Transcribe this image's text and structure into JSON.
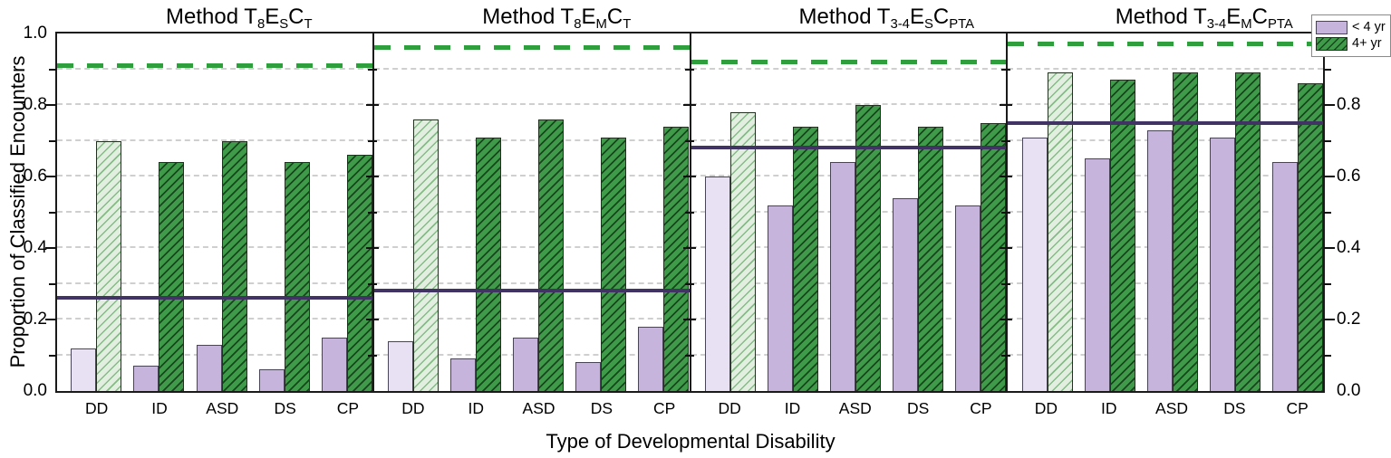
{
  "figure": {
    "ylabel": "Proportion of Classified Encounters",
    "xlabel": "Type of Developmental Disability",
    "left_axis_tick_labels": [
      "1.0",
      "0.8",
      "0.6",
      "0.4",
      "0.2",
      "0.0"
    ],
    "right_axis_tick_labels": [
      "0.8",
      "0.6",
      "0.4",
      "0.2",
      "0.0"
    ],
    "legend": {
      "entries": [
        {
          "label": "< 4 yr",
          "key": "lt4"
        },
        {
          "label": "4+ yr",
          "key": "plus4"
        }
      ]
    }
  },
  "chart_data": {
    "type": "bar",
    "categories": [
      "DD",
      "ID",
      "ASD",
      "DS",
      "CP"
    ],
    "ylim": [
      0,
      1
    ],
    "ytick_label_step": 0.2,
    "ytick_minor_step": 0.1,
    "gridline_values": [
      0.1,
      0.2,
      0.3,
      0.4,
      0.5,
      0.6,
      0.7,
      0.8,
      0.9
    ],
    "grid": "horizontal dashed",
    "legend_position": "top-right",
    "highlight_category": "DD",
    "panels": [
      {
        "title": "Method T8ESCT",
        "title_segments": [
          {
            "t": "Method T"
          },
          {
            "t": "8",
            "sub": true
          },
          {
            "t": "E"
          },
          {
            "t": "S",
            "sub": true
          },
          {
            "t": "C"
          },
          {
            "t": "T",
            "sub": true
          }
        ],
        "series": [
          {
            "name": "< 4 yr",
            "values": [
              0.12,
              0.07,
              0.13,
              0.06,
              0.15
            ]
          },
          {
            "name": "4+ yr",
            "values": [
              0.7,
              0.64,
              0.7,
              0.64,
              0.66
            ]
          }
        ],
        "ref_lines": {
          "lt4_solid": 0.26,
          "plus4_dashed": 0.91
        }
      },
      {
        "title": "Method T8EMCT",
        "title_segments": [
          {
            "t": "Method T"
          },
          {
            "t": "8",
            "sub": true
          },
          {
            "t": "E"
          },
          {
            "t": "M",
            "sub": true
          },
          {
            "t": "C"
          },
          {
            "t": "T",
            "sub": true
          }
        ],
        "series": [
          {
            "name": "< 4 yr",
            "values": [
              0.14,
              0.09,
              0.15,
              0.08,
              0.18
            ]
          },
          {
            "name": "4+ yr",
            "values": [
              0.76,
              0.71,
              0.76,
              0.71,
              0.74
            ]
          }
        ],
        "ref_lines": {
          "lt4_solid": 0.28,
          "plus4_dashed": 0.96
        }
      },
      {
        "title": "Method T3-4ESCPTA",
        "title_segments": [
          {
            "t": "Method T"
          },
          {
            "t": "3-4",
            "sub": true
          },
          {
            "t": "E"
          },
          {
            "t": "S",
            "sub": true
          },
          {
            "t": "C"
          },
          {
            "t": "PTA",
            "sub": true
          }
        ],
        "series": [
          {
            "name": "< 4 yr",
            "values": [
              0.6,
              0.52,
              0.64,
              0.54,
              0.52
            ]
          },
          {
            "name": "4+ yr",
            "values": [
              0.78,
              0.74,
              0.8,
              0.74,
              0.75
            ]
          }
        ],
        "ref_lines": {
          "lt4_solid": 0.68,
          "plus4_dashed": 0.92
        }
      },
      {
        "title": "Method T3-4EMCPTA",
        "title_segments": [
          {
            "t": "Method T"
          },
          {
            "t": "3-4",
            "sub": true
          },
          {
            "t": "E"
          },
          {
            "t": "M",
            "sub": true
          },
          {
            "t": "C"
          },
          {
            "t": "PTA",
            "sub": true
          }
        ],
        "series": [
          {
            "name": "< 4 yr",
            "values": [
              0.71,
              0.65,
              0.73,
              0.71,
              0.64
            ]
          },
          {
            "name": "4+ yr",
            "values": [
              0.89,
              0.87,
              0.89,
              0.89,
              0.86
            ]
          }
        ],
        "ref_lines": {
          "lt4_solid": 0.75,
          "plus4_dashed": 0.97
        }
      }
    ]
  },
  "colors": {
    "lt4_fill": "#c7b4dc",
    "lt4_fill_highlight": "#e8e1f3",
    "lt4_border": "#4a4458",
    "plus4_fill": "#3f9b49",
    "plus4_hatch": "#17461c",
    "plus4_fill_highlight": "#e2efe0",
    "plus4_hatch_highlight": "#84bb86",
    "plus4_border": "#22301f",
    "ref_line_lt4": "#413364",
    "ref_line_plus4": "#2f9e3c",
    "gridline": "#cfcfcf",
    "axis": "#111111"
  }
}
